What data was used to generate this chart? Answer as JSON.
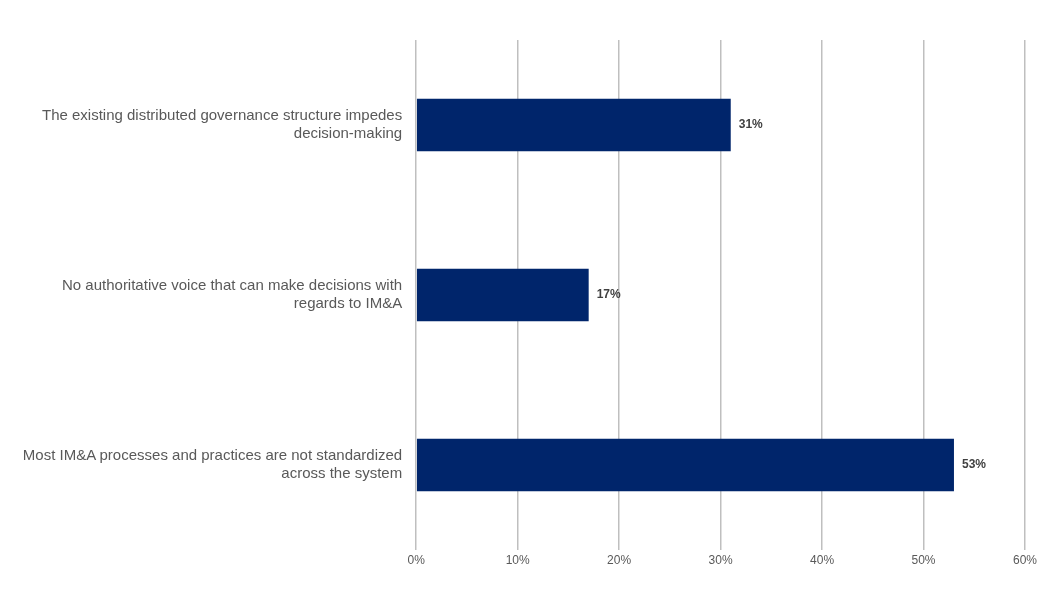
{
  "chart_data": {
    "type": "bar",
    "orientation": "horizontal",
    "categories": [
      "The existing distributed governance structure impedes decision-making",
      "No authoritative voice that can make decisions with regards to IM&A",
      "Most IM&A processes and practices are not standardized across the system"
    ],
    "series": [
      {
        "color": "#00256b",
        "values": [
          31,
          17,
          53
        ],
        "value_labels": [
          "31%",
          "17%",
          "53%"
        ]
      }
    ],
    "xlim": [
      0,
      60
    ],
    "xticks": [
      {
        "value": 0,
        "label": "0%"
      },
      {
        "value": 10,
        "label": "10%"
      },
      {
        "value": 20,
        "label": "20%"
      },
      {
        "value": 30,
        "label": "30%"
      },
      {
        "value": 40,
        "label": "40%"
      },
      {
        "value": 50,
        "label": "50%"
      },
      {
        "value": 60,
        "label": "60%"
      }
    ],
    "grid": "x",
    "legend": false
  }
}
